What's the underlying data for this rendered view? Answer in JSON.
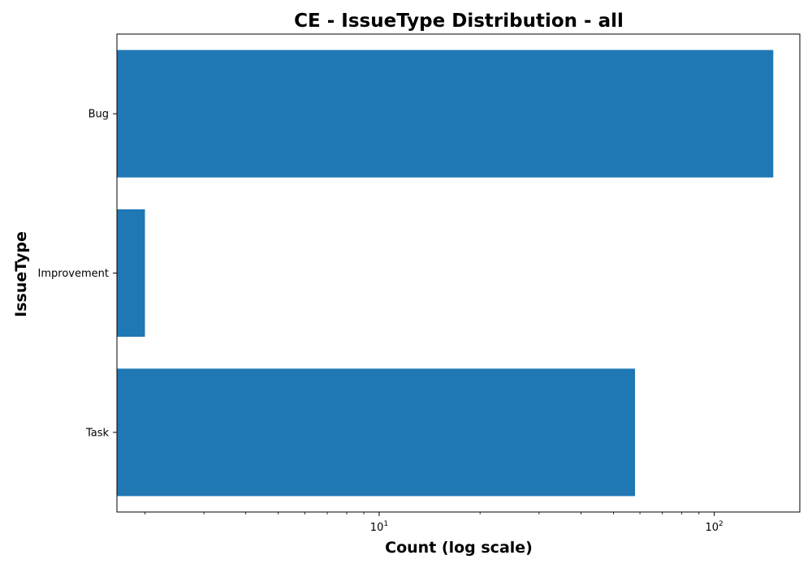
{
  "chart_data": {
    "type": "bar",
    "orientation": "horizontal",
    "title": "CE - IssueType Distribution - all",
    "xlabel": "Count (log scale)",
    "ylabel": "IssueType",
    "categories": [
      "Bug",
      "Improvement",
      "Task"
    ],
    "values": [
      150,
      2,
      58
    ],
    "x_scale": "log",
    "xlim": [
      1.65,
      180
    ],
    "x_ticks": [
      {
        "value": 10,
        "base": "10",
        "exp": "1"
      },
      {
        "value": 100,
        "base": "10",
        "exp": "2"
      }
    ],
    "grid": false,
    "bar_color": "#1f77b4"
  }
}
